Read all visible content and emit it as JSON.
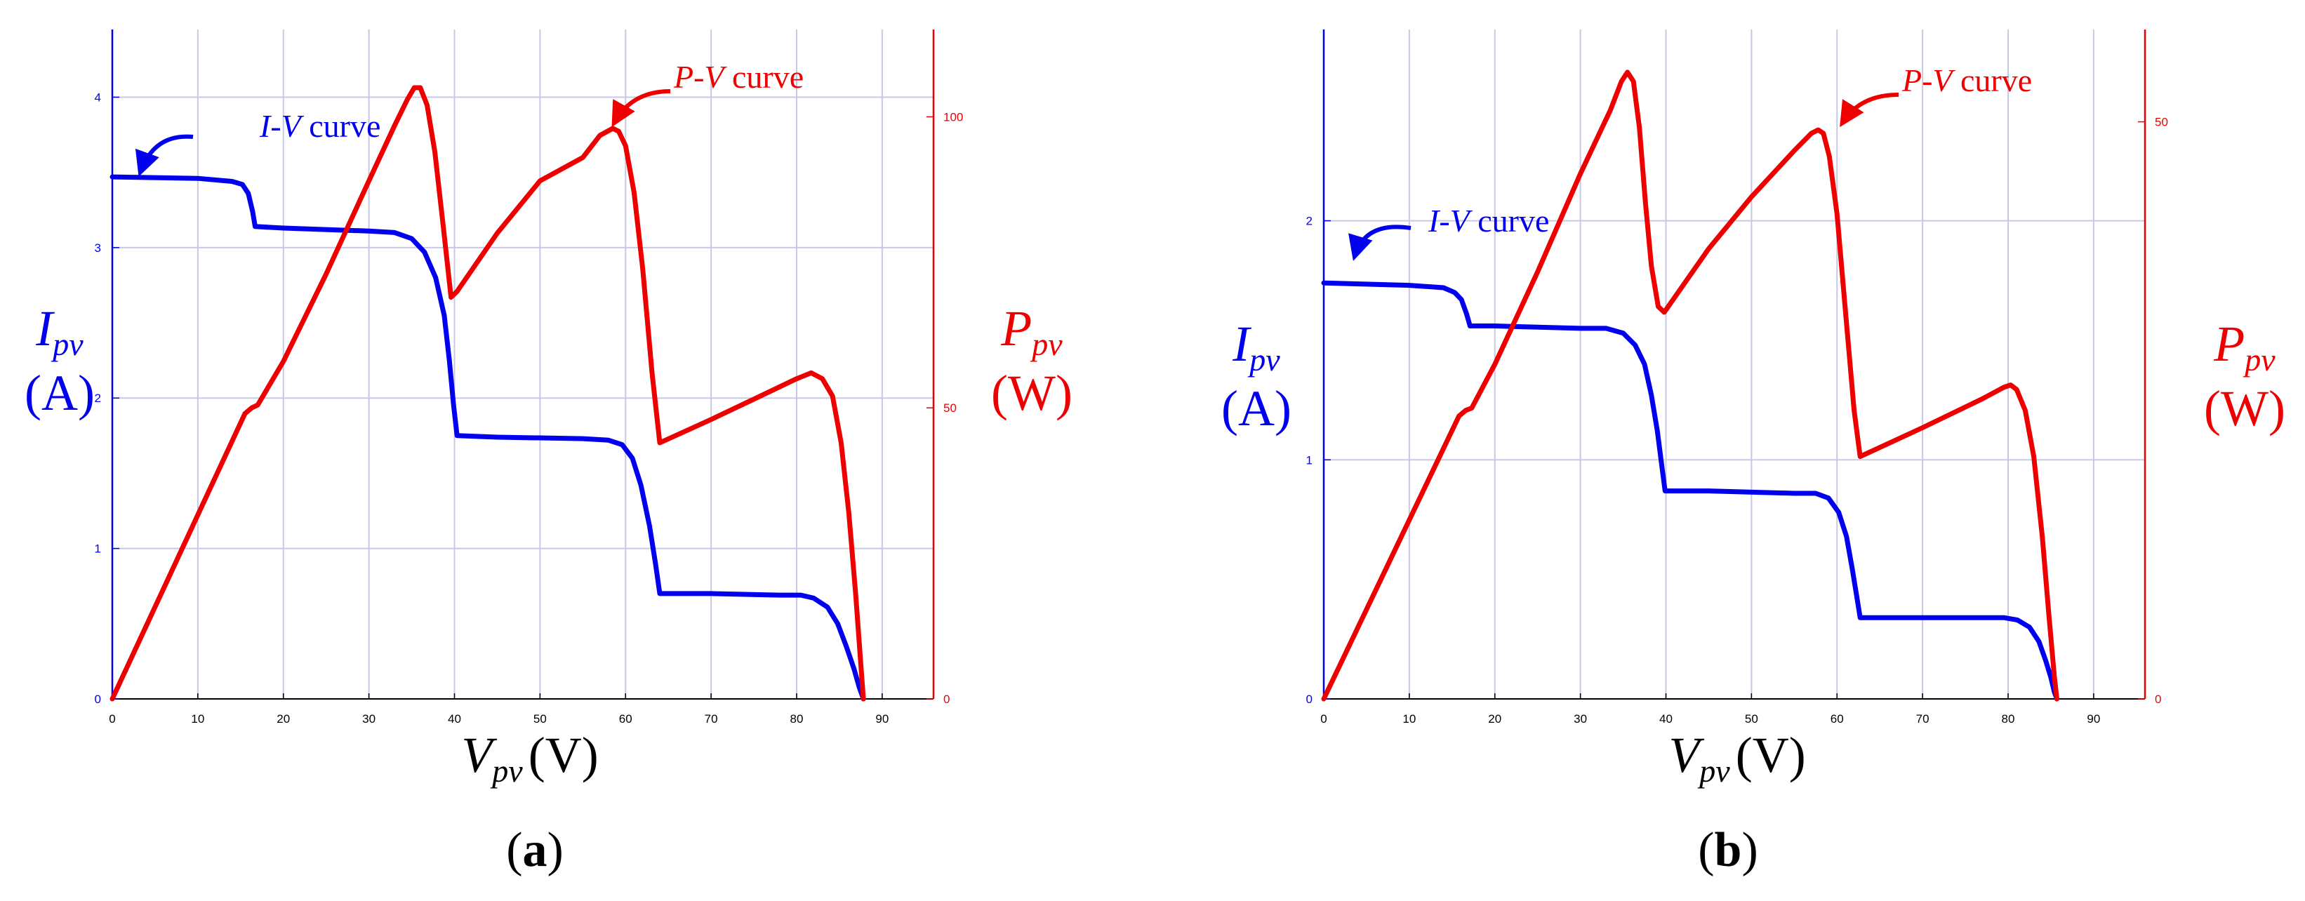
{
  "colors": {
    "current": "#0000ee",
    "power": "#ee0000",
    "grid": "#c8c8e6",
    "axis": "#000000"
  },
  "chart_data": [
    {
      "panel_label": "a",
      "type": "line",
      "xlabel_main": "V",
      "xlabel_sub": "pv",
      "xlabel_unit": "(V)",
      "ylabel_left_main": "I",
      "ylabel_left_sub": "pv",
      "ylabel_left_unit": "(A)",
      "ylabel_right_main": "P",
      "ylabel_right_sub": "pv",
      "ylabel_right_unit": "(W)",
      "xlim": [
        0,
        96
      ],
      "ylim_left": [
        0,
        4.45
      ],
      "ylim_right": [
        0,
        115
      ],
      "xticks": [
        0,
        10,
        20,
        30,
        40,
        50,
        60,
        70,
        80,
        90
      ],
      "yticks_left": [
        0,
        1,
        2,
        3,
        4
      ],
      "yticks_right": [
        0,
        50,
        100
      ],
      "grid": true,
      "series": [
        {
          "name": "I-V curve",
          "axis": "left",
          "color": "#0000ee",
          "x": [
            0,
            10,
            14,
            15.2,
            15.9,
            16.4,
            16.7,
            20,
            30,
            33,
            35,
            36.5,
            37.8,
            38.8,
            39.4,
            39.9,
            40.3,
            45,
            55,
            58,
            59.6,
            60.8,
            61.8,
            62.8,
            63.5,
            64,
            70,
            78,
            80.5,
            82,
            83.6,
            84.8,
            85.8,
            86.7,
            87.3,
            87.8
          ],
          "y": [
            3.47,
            3.46,
            3.44,
            3.42,
            3.36,
            3.24,
            3.14,
            3.13,
            3.11,
            3.1,
            3.06,
            2.97,
            2.8,
            2.55,
            2.25,
            1.95,
            1.75,
            1.74,
            1.73,
            1.72,
            1.69,
            1.6,
            1.42,
            1.15,
            0.9,
            0.7,
            0.7,
            0.69,
            0.69,
            0.67,
            0.61,
            0.5,
            0.35,
            0.2,
            0.08,
            0.0
          ]
        },
        {
          "name": "P-V curve",
          "axis": "right",
          "color": "#ee0000",
          "x": [
            0,
            15.5,
            16.3,
            17,
            20,
            25,
            30,
            33,
            34.5,
            35.3,
            36,
            36.8,
            37.7,
            38.7,
            39.6,
            40.3,
            45,
            50,
            55,
            57,
            58.5,
            59.2,
            60,
            61,
            62,
            63.1,
            64,
            70,
            75,
            80,
            81.7,
            83,
            84.2,
            85.2,
            86.1,
            86.9,
            87.5,
            87.8
          ],
          "y": [
            0,
            49,
            50,
            50.5,
            58,
            73,
            89,
            98.5,
            103,
            105,
            105,
            102,
            94,
            81,
            69,
            70,
            80,
            89,
            93,
            96.8,
            98,
            97.5,
            95,
            87,
            74,
            56,
            44,
            48,
            51.5,
            55,
            56,
            55,
            52,
            44,
            32,
            18,
            6,
            0
          ]
        }
      ],
      "annotations": [
        {
          "main": "I-V",
          "rest": " curve",
          "color": "#0000ee"
        },
        {
          "main": "P-V",
          "rest": " curve",
          "color": "#ee0000"
        }
      ]
    },
    {
      "panel_label": "b",
      "type": "line",
      "xlabel_main": "V",
      "xlabel_sub": "pv",
      "xlabel_unit": "(V)",
      "ylabel_left_main": "I",
      "ylabel_left_sub": "pv",
      "ylabel_left_unit": "(A)",
      "ylabel_right_main": "P",
      "ylabel_right_sub": "pv",
      "ylabel_right_unit": "(W)",
      "xlim": [
        0,
        96
      ],
      "ylim_left": [
        0,
        2.8
      ],
      "ylim_right": [
        0,
        58
      ],
      "xticks": [
        0,
        10,
        20,
        30,
        40,
        50,
        60,
        70,
        80,
        90
      ],
      "yticks_left": [
        0,
        1,
        2
      ],
      "yticks_right": [
        0,
        50
      ],
      "grid": true,
      "series": [
        {
          "name": "I-V curve",
          "axis": "left",
          "color": "#0000ee",
          "x": [
            0,
            10,
            14,
            15.3,
            16.1,
            16.7,
            17.1,
            20,
            30,
            33,
            35,
            36.4,
            37.5,
            38.3,
            39,
            39.5,
            39.9,
            45,
            55,
            57.5,
            59,
            60.2,
            61.1,
            61.8,
            62.3,
            62.7,
            70,
            77,
            79.5,
            81.1,
            82.5,
            83.6,
            84.4,
            85,
            85.4,
            85.7
          ],
          "y": [
            1.74,
            1.73,
            1.72,
            1.7,
            1.67,
            1.61,
            1.56,
            1.56,
            1.55,
            1.55,
            1.53,
            1.48,
            1.4,
            1.27,
            1.12,
            0.98,
            0.87,
            0.87,
            0.86,
            0.86,
            0.84,
            0.78,
            0.68,
            0.54,
            0.43,
            0.34,
            0.34,
            0.34,
            0.34,
            0.33,
            0.3,
            0.24,
            0.16,
            0.09,
            0.03,
            0.0
          ]
        },
        {
          "name": "P-V curve",
          "axis": "right",
          "color": "#ee0000",
          "x": [
            0,
            15.8,
            16.6,
            17.3,
            20,
            25,
            30,
            33.5,
            34.8,
            35.5,
            36.2,
            36.9,
            37.6,
            38.3,
            39.1,
            39.8,
            45,
            50,
            55,
            57,
            57.8,
            58.4,
            59.1,
            60,
            61,
            62,
            62.7,
            70,
            77,
            79.5,
            80.3,
            81,
            82,
            83,
            84,
            84.8,
            85.4,
            85.7
          ],
          "y": [
            0,
            24.5,
            25,
            25.2,
            29,
            37,
            45.5,
            51,
            53.5,
            54.3,
            53.5,
            49.5,
            43,
            37.5,
            34,
            33.5,
            39,
            43.5,
            47.5,
            49,
            49.3,
            49,
            47,
            42,
            33.5,
            25,
            21,
            23.5,
            26,
            27,
            27.2,
            26.8,
            25,
            21,
            14,
            7,
            2,
            0
          ]
        }
      ],
      "annotations": [
        {
          "main": "I-V",
          "rest": " curve",
          "color": "#0000ee"
        },
        {
          "main": "P-V",
          "rest": " curve",
          "color": "#ee0000"
        }
      ]
    }
  ]
}
